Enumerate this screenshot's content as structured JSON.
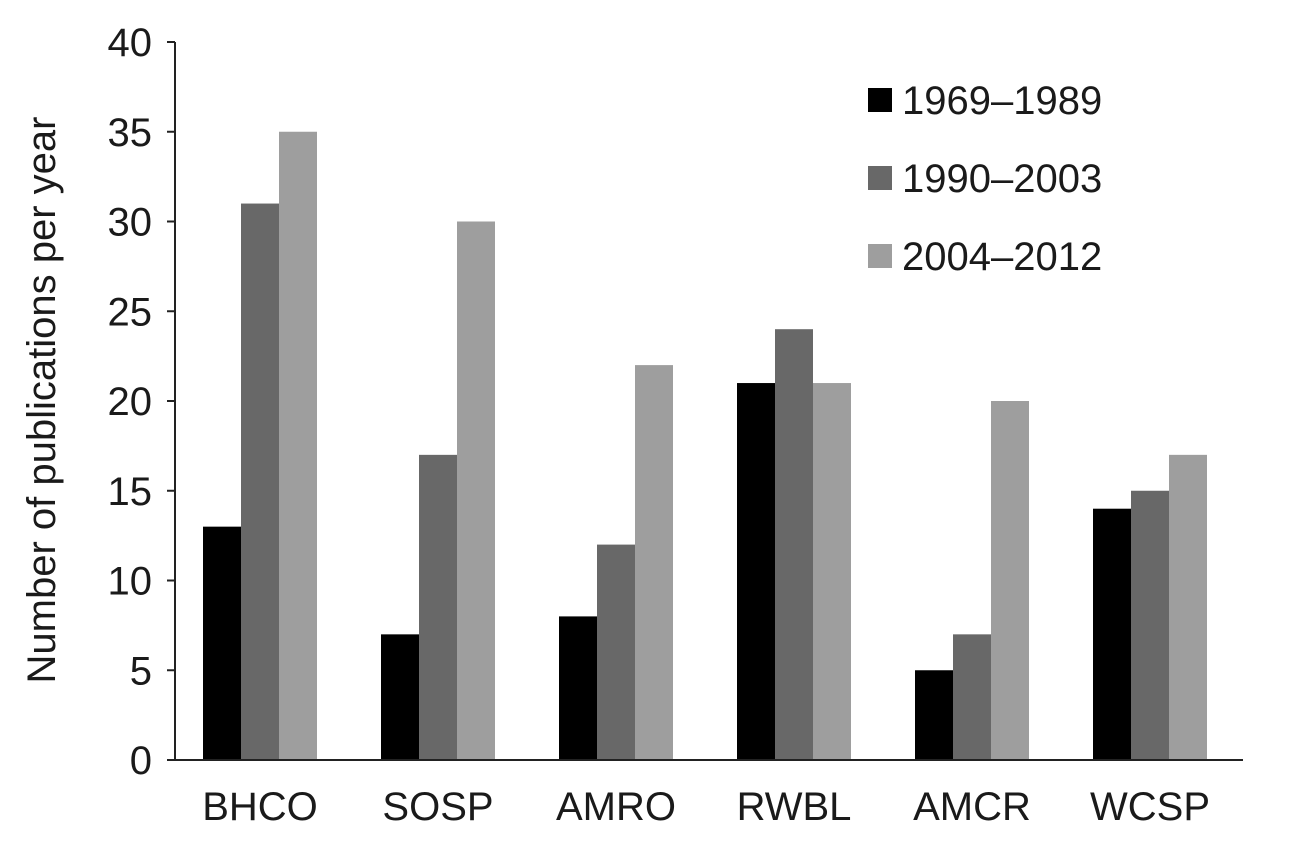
{
  "chart_data": {
    "type": "bar",
    "title": "",
    "xlabel": "",
    "ylabel": "Number of publications per year",
    "ylim": [
      0,
      40
    ],
    "yticks": [
      0,
      5,
      10,
      15,
      20,
      25,
      30,
      35,
      40
    ],
    "grid": false,
    "legend_position": "top-right",
    "categories": [
      "BHCO",
      "SOSP",
      "AMRO",
      "RWBL",
      "AMCR",
      "WCSP"
    ],
    "series": [
      {
        "name": "1969–1989",
        "color": "#000000",
        "values": [
          13,
          7,
          8,
          21,
          5,
          14
        ]
      },
      {
        "name": "1990–2003",
        "color": "#686868",
        "values": [
          31,
          17,
          12,
          24,
          7,
          15
        ]
      },
      {
        "name": "2004–2012",
        "color": "#9e9e9e",
        "values": [
          35,
          30,
          22,
          21,
          20,
          17
        ]
      }
    ]
  }
}
